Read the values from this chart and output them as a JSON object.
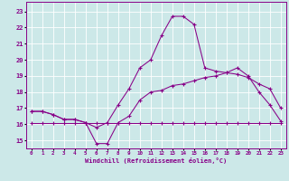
{
  "bg_color": "#cce8e8",
  "line_color": "#880088",
  "grid_color": "#ffffff",
  "xlabel": "Windchill (Refroidissement éolien,°C)",
  "x_ticks": [
    0,
    1,
    2,
    3,
    4,
    5,
    6,
    7,
    8,
    9,
    10,
    11,
    12,
    13,
    14,
    15,
    16,
    17,
    18,
    19,
    20,
    21,
    22,
    23
  ],
  "yticks": [
    15,
    16,
    17,
    18,
    19,
    20,
    21,
    22,
    23
  ],
  "ylim": [
    14.5,
    23.6
  ],
  "xlim": [
    -0.5,
    23.5
  ],
  "line1_y": [
    16.8,
    16.8,
    16.6,
    16.3,
    16.3,
    16.1,
    14.8,
    14.8,
    16.1,
    16.5,
    17.5,
    18.0,
    18.1,
    18.4,
    18.5,
    18.7,
    18.9,
    19.0,
    19.2,
    19.5,
    19.0,
    18.0,
    17.2,
    16.2
  ],
  "line2_y": [
    16.8,
    16.8,
    16.6,
    16.3,
    16.3,
    16.1,
    15.8,
    16.1,
    17.2,
    18.2,
    19.5,
    20.0,
    21.5,
    22.7,
    22.7,
    22.2,
    19.5,
    19.3,
    19.2,
    19.1,
    18.9,
    18.5,
    18.2,
    17.0
  ],
  "line3_y": [
    16.1,
    16.1,
    16.1,
    16.1,
    16.1,
    16.1,
    16.1,
    16.1,
    16.1,
    16.1,
    16.1,
    16.1,
    16.1,
    16.1,
    16.1,
    16.1,
    16.1,
    16.1,
    16.1,
    16.1,
    16.1,
    16.1,
    16.1,
    16.1
  ]
}
